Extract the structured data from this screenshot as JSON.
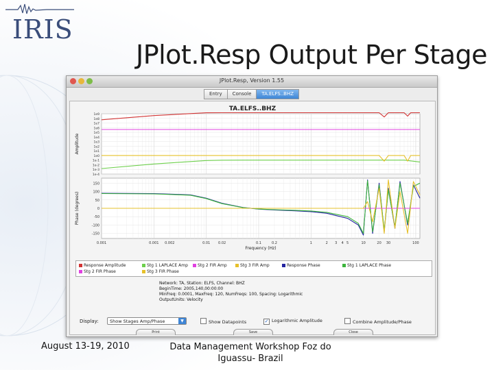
{
  "slide": {
    "logo_text": "IRIS",
    "title": "JPlot.Resp Output Per Stage",
    "footer_date": "August 13-19, 2010",
    "footer_event": "Data  Management Workshop Foz do Iguassu- Brazil"
  },
  "window": {
    "title": "JPlot.Resp, Version 1.55",
    "tabs": [
      {
        "label": "Entry"
      },
      {
        "label": "Console"
      },
      {
        "label": "TA.ELFS..BHZ"
      }
    ]
  },
  "plot": {
    "title": "TA.ELFS..BHZ",
    "amp_ylabel": "Amplitude",
    "phase_ylabel": "Phase (degrees)",
    "xlabel": "Frequency (Hz)"
  },
  "legend": [
    {
      "label": "Response Amplitude",
      "color": "#d23434"
    },
    {
      "label": "Stg 1 LAPLACE Amp",
      "color": "#6ccf4a"
    },
    {
      "label": "Stg 2 FIR Amp",
      "color": "#e040e0"
    },
    {
      "label": "Stg 3 FIR Amp",
      "color": "#e6c02a"
    },
    {
      "label": "Response Phase",
      "color": "#2323a0"
    },
    {
      "label": "Stg 1 LAPLACE Phase",
      "color": "#3cb43c"
    },
    {
      "label": "Stg 2 FIR Phase",
      "color": "#e040e0"
    },
    {
      "label": "Stg 3 FIR Phase",
      "color": "#e6c02a"
    }
  ],
  "info": {
    "line1": "Network: TA,  Station: ELFS,  Channel: BHZ",
    "line2": "BeginTime: 2005,140,00:00:00",
    "line3": "MinFreq: 0.0001,  MaxFreq: 120,  NumFreqs: 100,  Spacing: Logarithmic",
    "line4": "OutputUnits: Velocity"
  },
  "controls": {
    "display_label": "Display:",
    "display_value": "Show Stages Amp/Phase",
    "show_datapoints": "Show Datapoints",
    "log_amplitude": "Logarithmic Amplitude",
    "combine": "Combine Amplitude/Phase",
    "print_label": "Print",
    "save_label": "Save",
    "close_label": "Close"
  },
  "chart_data": [
    {
      "type": "line",
      "title": "TA.ELFS..BHZ",
      "xlabel": "Frequency (Hz)",
      "ylabel": "Amplitude",
      "xscale": "log",
      "xlim": [
        0.0001,
        120
      ],
      "yscale": "log",
      "ylim": [
        0.0001,
        1000000000
      ],
      "yticks": [
        "1e9",
        "1e8",
        "1e7",
        "1e6",
        "1e5",
        "1e4",
        "1e3",
        "1e2",
        "1e1",
        "1e0",
        "1e-1",
        "1e-2",
        "1e-3",
        "1e-4"
      ],
      "series": [
        {
          "name": "Response Amplitude",
          "color": "#d23434",
          "x": [
            0.0001,
            0.001,
            0.01,
            0.02,
            0.05,
            0.1,
            1,
            10,
            20,
            25,
            30,
            60,
            70,
            80,
            120
          ],
          "y": [
            50000000,
            400000000,
            1600000000,
            1650000000,
            1650000000,
            1650000000,
            1650000000,
            1650000000,
            1650000000,
            200000000,
            1650000000,
            1650000000,
            300000000,
            1650000000,
            1650000000
          ]
        },
        {
          "name": "Stg 1 LAPLACE Amp",
          "color": "#6ccf4a",
          "x": [
            0.0001,
            0.001,
            0.01,
            0.02,
            0.05,
            0.1,
            1,
            10,
            60,
            120
          ],
          "y": [
            0.0015,
            0.015,
            0.08,
            0.095,
            0.1,
            0.1,
            0.1,
            0.1,
            0.1,
            0.04
          ]
        },
        {
          "name": "Stg 2 FIR Amp",
          "color": "#e040e0",
          "x": [
            0.0001,
            1,
            120
          ],
          "y": [
            400000,
            400000,
            400000
          ]
        },
        {
          "name": "Stg 3 FIR Amp",
          "color": "#e6c02a",
          "x": [
            0.0001,
            1,
            10,
            20,
            25,
            30,
            60,
            70,
            80,
            120
          ],
          "y": [
            1,
            1,
            1,
            1,
            0.06,
            1,
            1,
            0.06,
            1,
            1
          ]
        }
      ]
    },
    {
      "type": "line",
      "title": "",
      "xlabel": "Frequency (Hz)",
      "ylabel": "Phase (degrees)",
      "xscale": "log",
      "xlim": [
        0.0001,
        120
      ],
      "ylim": [
        -180,
        180
      ],
      "yticks": [
        150,
        100,
        50,
        0,
        -50,
        -100,
        -150
      ],
      "xticks": [
        "0.001",
        "0.001",
        "0.002",
        "0.01",
        "0.02",
        "0.1",
        "0.2",
        "1",
        "2",
        "3",
        "4",
        "5",
        "10",
        "20",
        "30",
        "100"
      ],
      "series": [
        {
          "name": "Response Phase",
          "color": "#2323a0",
          "x": [
            0.0001,
            0.001,
            0.005,
            0.01,
            0.02,
            0.05,
            0.1,
            0.2,
            0.5,
            1,
            2,
            5,
            8,
            10,
            12,
            15,
            20,
            25,
            30,
            40,
            50,
            70,
            90,
            120
          ],
          "y": [
            90,
            88,
            80,
            60,
            30,
            5,
            -5,
            -10,
            -15,
            -20,
            -30,
            -60,
            -100,
            -160,
            170,
            -150,
            150,
            -140,
            120,
            -120,
            160,
            -100,
            140,
            60
          ]
        },
        {
          "name": "Stg 1 LAPLACE Phase",
          "color": "#3cb43c",
          "x": [
            0.0001,
            0.001,
            0.005,
            0.01,
            0.02,
            0.05,
            0.1,
            0.2,
            0.5,
            1,
            2,
            5,
            8,
            10,
            12,
            15,
            20,
            25,
            30,
            40,
            50,
            70,
            90,
            120
          ],
          "y": [
            88,
            86,
            78,
            58,
            28,
            4,
            -4,
            -8,
            -12,
            -16,
            -24,
            -50,
            -90,
            -150,
            165,
            -140,
            140,
            -130,
            110,
            -110,
            150,
            -90,
            130,
            150
          ]
        },
        {
          "name": "Stg 2 FIR Phase",
          "color": "#e040e0",
          "x": [
            0.0001,
            120
          ],
          "y": [
            0,
            0
          ]
        },
        {
          "name": "Stg 3 FIR Phase",
          "color": "#e6c02a",
          "x": [
            0.0001,
            10,
            12,
            15,
            20,
            25,
            30,
            40,
            50,
            70,
            90,
            120
          ],
          "y": [
            0,
            0,
            40,
            -80,
            120,
            -150,
            170,
            -120,
            100,
            -150,
            160,
            80
          ]
        }
      ]
    }
  ]
}
